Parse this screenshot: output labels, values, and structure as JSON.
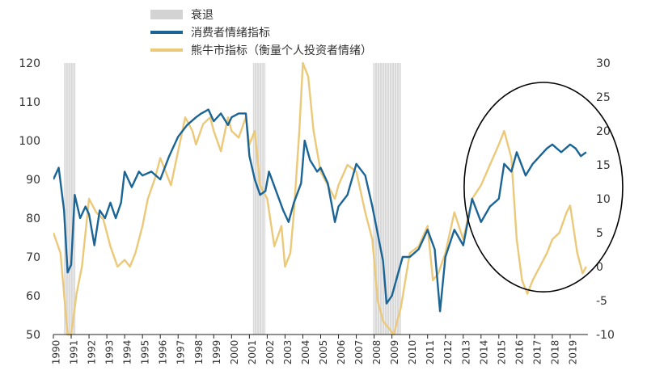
{
  "chart_data": {
    "type": "line",
    "title": "",
    "legend": {
      "placement": "top-center",
      "entries": [
        {
          "label": "衰退",
          "color": "#d3d3d3",
          "kind": "band"
        },
        {
          "label": "消费者情绪指标",
          "color": "#1a6496",
          "kind": "line"
        },
        {
          "label": "熊牛市指标（衡量个人投资者情绪）",
          "color": "#ebc978",
          "kind": "line"
        }
      ]
    },
    "x_tick_labels": [
      "1990",
      "1991",
      "1992",
      "1993",
      "1994",
      "1995",
      "1996",
      "1997",
      "1998",
      "1999",
      "2000",
      "2001",
      "2002",
      "2003",
      "2004",
      "2005",
      "2006",
      "2007",
      "2008",
      "2009",
      "2010",
      "2011",
      "2012",
      "2013",
      "2014",
      "2015",
      "2016",
      "2017",
      "2018",
      "2019"
    ],
    "xlim": [
      1990,
      2020
    ],
    "y_left": {
      "ylim": [
        50,
        120
      ],
      "ticks": [
        50,
        60,
        70,
        80,
        90,
        100,
        110,
        120
      ]
    },
    "y_right": {
      "ylim": [
        -10,
        30
      ],
      "ticks": [
        -10,
        -5,
        0,
        5,
        10,
        15,
        20,
        25,
        30
      ]
    },
    "grid": false,
    "recessions": [
      [
        1990.6,
        1991.25
      ],
      [
        2001.2,
        2001.9
      ],
      [
        2007.95,
        2009.5
      ]
    ],
    "annotation": {
      "shape": "ellipse",
      "x_center": 2017.5,
      "y_center_left": 88,
      "x_halfwidth": 4.45,
      "y_halfheight_left": 27
    },
    "series": [
      {
        "name": "消费者情绪指标",
        "axis": "left",
        "color": "#1a6496",
        "x": [
          1990,
          1990.3,
          1990.6,
          1990.8,
          1991,
          1991.2,
          1991.5,
          1991.8,
          1992,
          1992.3,
          1992.6,
          1992.9,
          1993.2,
          1993.5,
          1993.8,
          1994,
          1994.4,
          1994.8,
          1995,
          1995.5,
          1996,
          1996.5,
          1997,
          1997.5,
          1998,
          1998.3,
          1998.7,
          1999,
          1999.4,
          1999.8,
          2000,
          2000.4,
          2000.8,
          2001,
          2001.3,
          2001.6,
          2001.9,
          2002.1,
          2002.5,
          2002.9,
          2003.2,
          2003.5,
          2003.9,
          2004.1,
          2004.4,
          2004.8,
          2005,
          2005.4,
          2005.8,
          2006,
          2006.5,
          2007,
          2007.5,
          2007.9,
          2008.2,
          2008.5,
          2008.7,
          2009,
          2009.3,
          2009.6,
          2010,
          2010.5,
          2011,
          2011.4,
          2011.7,
          2012,
          2012.5,
          2013,
          2013.5,
          2014,
          2014.5,
          2015,
          2015.3,
          2015.7,
          2016,
          2016.5,
          2016.9,
          2017.3,
          2017.7,
          2018,
          2018.5,
          2019,
          2019.3,
          2019.6,
          2019.9
        ],
        "values": [
          90,
          93,
          82,
          66,
          68,
          86,
          80,
          83,
          81,
          73,
          82,
          80,
          84,
          80,
          84,
          92,
          88,
          92,
          91,
          92,
          90,
          96,
          101,
          104,
          106,
          107,
          108,
          105,
          107,
          104,
          106,
          107,
          107,
          96,
          90,
          86,
          87,
          92,
          87,
          82,
          79,
          84,
          89,
          100,
          95,
          92,
          93,
          89,
          79,
          83,
          86,
          94,
          91,
          83,
          76,
          69,
          58,
          60,
          65,
          70,
          70,
          72,
          77,
          72,
          56,
          70,
          77,
          73,
          85,
          79,
          83,
          85,
          94,
          92,
          97,
          91,
          94,
          96,
          98,
          99,
          97,
          99,
          98,
          96,
          97
        ]
      },
      {
        "name": "熊牛市指标（衡量个人投资者情绪）",
        "axis": "right",
        "color": "#ebc978",
        "x": [
          1990,
          1990.4,
          1990.8,
          1991,
          1991.3,
          1991.6,
          1992,
          1992.4,
          1992.8,
          1993.2,
          1993.6,
          1994,
          1994.3,
          1994.6,
          1995,
          1995.3,
          1995.7,
          1996,
          1996.3,
          1996.6,
          1997,
          1997.4,
          1997.8,
          1998,
          1998.4,
          1998.8,
          1999,
          1999.4,
          1999.8,
          2000,
          2000.4,
          2000.8,
          2001,
          2001.3,
          2001.6,
          2002,
          2002.4,
          2002.8,
          2003,
          2003.3,
          2003.5,
          2003.8,
          2004,
          2004.3,
          2004.6,
          2005,
          2005.4,
          2005.8,
          2006,
          2006.5,
          2007,
          2007.5,
          2007.9,
          2008.2,
          2008.5,
          2008.8,
          2009.1,
          2009.5,
          2010,
          2010.5,
          2011,
          2011.3,
          2011.6,
          2012,
          2012.5,
          2013,
          2013.5,
          2014,
          2014.5,
          2015,
          2015.3,
          2015.7,
          2016,
          2016.3,
          2016.6,
          2016.9,
          2017.3,
          2017.7,
          2018,
          2018.4,
          2018.8,
          2019,
          2019.4,
          2019.7,
          2019.9
        ],
        "values": [
          5,
          2,
          -10,
          -10,
          -4,
          0,
          10,
          8,
          7,
          3,
          0,
          1,
          0,
          2,
          6,
          10,
          13,
          16,
          14,
          12,
          17,
          22,
          20,
          18,
          21,
          22,
          20,
          17,
          22,
          20,
          19,
          22,
          18,
          20,
          12,
          10,
          3,
          6,
          0,
          2,
          8,
          20,
          30,
          28,
          20,
          14,
          12,
          10,
          12,
          15,
          14,
          8,
          4,
          -5,
          -8,
          -9,
          -10,
          -6,
          2,
          3,
          6,
          -2,
          -1,
          2,
          8,
          4,
          10,
          12,
          15,
          18,
          20,
          16,
          4,
          -2,
          -4,
          -2,
          0,
          2,
          4,
          5,
          8,
          9,
          2,
          -1,
          0
        ]
      }
    ]
  }
}
